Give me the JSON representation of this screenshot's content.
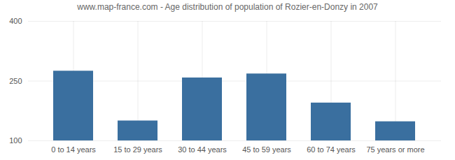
{
  "chart_data": {
    "type": "bar",
    "title": "www.map-france.com - Age distribution of population of Rozier-en-Donzy in 2007",
    "categories": [
      "0 to 14 years",
      "15 to 29 years",
      "30 to 44 years",
      "45 to 59 years",
      "60 to 74 years",
      "75 years or more"
    ],
    "values": [
      275,
      150,
      258,
      268,
      195,
      148
    ],
    "color": "#3a6f9f",
    "ylim": [
      100,
      400
    ],
    "yticks": [
      100,
      250,
      400
    ],
    "grid": true
  }
}
